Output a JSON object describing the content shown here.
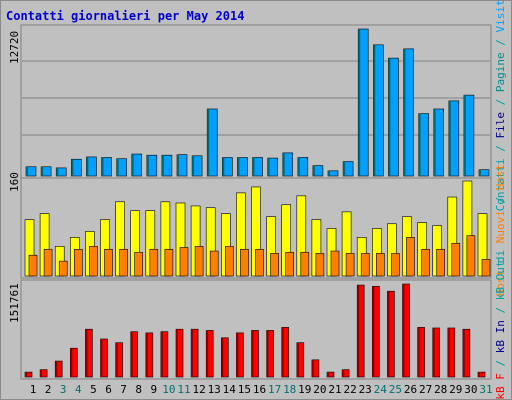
{
  "chart_data": {
    "type": "bar",
    "title": "Contatti giornalieri per May 2014",
    "categories": [
      "1",
      "2",
      "3",
      "4",
      "5",
      "6",
      "7",
      "8",
      "9",
      "10",
      "11",
      "12",
      "13",
      "14",
      "15",
      "16",
      "17",
      "18",
      "19",
      "20",
      "21",
      "22",
      "23",
      "24",
      "25",
      "26",
      "27",
      "28",
      "29",
      "30",
      "31"
    ],
    "weekend_days": [
      "3",
      "4",
      "10",
      "11",
      "17",
      "18",
      "24",
      "25",
      "31"
    ],
    "colors": {
      "title": "#0000cc",
      "background": "#c0c0c0",
      "plot_background": "#c0c0c0",
      "grid": "#808080",
      "frame": "#7f7f7f",
      "day_label": "#000000",
      "weekend_label": "#007070",
      "visits": "#00a0ff",
      "visits_side": "#006a7a",
      "pages": "#00c0a0",
      "pages_label": "#009090",
      "files": "#0000dd",
      "files_label": "#000090",
      "hits": "#00a0a0",
      "hits_label": "#00a0a0",
      "hosts": "#ffff00",
      "hosts_side": "#9a9a00",
      "hosts_label": "#ff8000",
      "kb": "#ff0000",
      "kb_side": "#900000",
      "kb_label": "#ff0000"
    },
    "panels": [
      {
        "id": "top",
        "ymax_label": "12720",
        "ylim": [
          0,
          12720
        ],
        "legend": [
          {
            "text": "Contatti",
            "color_key": "hits_label"
          },
          {
            "text": " / ",
            "color_key": "hits_label"
          },
          {
            "text": "File",
            "color_key": "files_label"
          },
          {
            "text": " / ",
            "color_key": "hits_label"
          },
          {
            "text": "Pagine",
            "color_key": "pages_label"
          },
          {
            "text": " / ",
            "color_key": "hits_label"
          },
          {
            "text": "Visite",
            "color_key": "visits"
          }
        ],
        "series": [
          {
            "key": "hits",
            "values": [
              800,
              800,
              700,
              1450,
              1650,
              1600,
              1500,
              1900,
              1800,
              1800,
              1850,
              1750,
              5800,
              1600,
              1600,
              1600,
              1550,
              2000,
              1600,
              900,
              450,
              1250,
              12720,
              11350,
              10200,
              11000,
              5400,
              5800,
              6500,
              7000,
              550
            ]
          }
        ]
      },
      {
        "id": "middle",
        "ymax_label": "160",
        "ylim": [
          0,
          160
        ],
        "legend": [
          {
            "text": "Host",
            "color_key": "hosts_label"
          },
          {
            "text": " di ",
            "color_key": "hits_label"
          },
          {
            "text": "Nuovi",
            "color_key": "hosts_label"
          },
          {
            "text": " / ",
            "color_key": "hits_label"
          },
          {
            "text": "Host",
            "color_key": "hosts_label"
          }
        ],
        "series": [
          {
            "key": "hosts",
            "values": [
              95,
              105,
              50,
              65,
              75,
              95,
              125,
              110,
              110,
              125,
              123,
              118,
              115,
              105,
              140,
              150,
              100,
              120,
              135,
              95,
              80,
              108,
              65,
              80,
              88,
              100,
              90,
              85,
              133,
              160,
              105
            ]
          },
          {
            "key": "new_hosts",
            "values": [
              35,
              45,
              25,
              45,
              50,
              45,
              45,
              40,
              45,
              45,
              48,
              50,
              42,
              50,
              45,
              45,
              38,
              40,
              40,
              38,
              42,
              38,
              38,
              38,
              38,
              65,
              45,
              45,
              55,
              68,
              28
            ]
          }
        ]
      },
      {
        "id": "bottom",
        "ymax_label": "151761",
        "ylim": [
          0,
          151761
        ],
        "legend": [
          {
            "text": "kB F",
            "color_key": "kb_label"
          },
          {
            "text": " / ",
            "color_key": "hits_label"
          },
          {
            "text": "kB In",
            "color_key": "files_label"
          },
          {
            "text": " / ",
            "color_key": "hits_label"
          },
          {
            "text": "kB Out",
            "color_key": "hits_label"
          }
        ],
        "series": [
          {
            "key": "kb",
            "values": [
              8000,
              12000,
              26000,
              47000,
              78000,
              62000,
              56000,
              74000,
              72000,
              74000,
              78000,
              78000,
              76000,
              64000,
              72000,
              76000,
              76000,
              81000,
              56000,
              28000,
              8000,
              12000,
              150000,
              148000,
              140000,
              151761,
              81000,
              80000,
              80000,
              78000,
              8000
            ]
          }
        ]
      }
    ]
  }
}
